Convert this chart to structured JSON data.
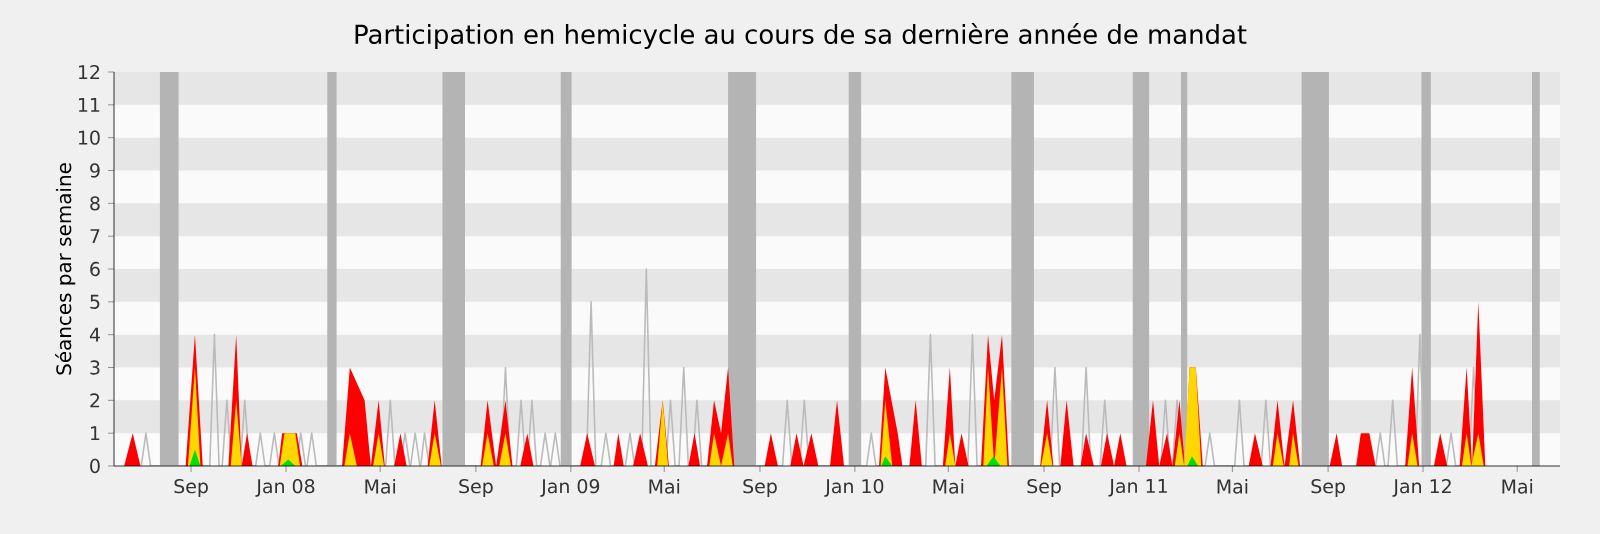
{
  "chart_data": {
    "type": "area",
    "title": "Participation en hemicycle au cours de sa dernière année de mandat",
    "ylabel": "Séances par semaine",
    "xlim": [
      "2007-05-25",
      "2012-06-25"
    ],
    "ylim": [
      0,
      12
    ],
    "xticks": [
      {
        "value": "2007-09-01",
        "label": "Sep"
      },
      {
        "value": "2008-01-01",
        "label": "Jan 08"
      },
      {
        "value": "2008-05-01",
        "label": "Mai"
      },
      {
        "value": "2008-09-01",
        "label": "Sep"
      },
      {
        "value": "2009-01-01",
        "label": "Jan 09"
      },
      {
        "value": "2009-05-01",
        "label": "Mai"
      },
      {
        "value": "2009-09-01",
        "label": "Sep"
      },
      {
        "value": "2010-01-01",
        "label": "Jan 10"
      },
      {
        "value": "2010-05-01",
        "label": "Mai"
      },
      {
        "value": "2010-09-01",
        "label": "Sep"
      },
      {
        "value": "2011-01-01",
        "label": "Jan 11"
      },
      {
        "value": "2011-05-01",
        "label": "Mai"
      },
      {
        "value": "2011-09-01",
        "label": "Sep"
      },
      {
        "value": "2012-01-01",
        "label": "Jan 12"
      },
      {
        "value": "2012-05-01",
        "label": "Mai"
      }
    ],
    "yticks": [
      0,
      1,
      2,
      3,
      4,
      5,
      6,
      7,
      8,
      9,
      10,
      11,
      12
    ],
    "bands": [
      {
        "axis": "y",
        "from": 1,
        "to": 2,
        "color": "#e6e6e6"
      },
      {
        "axis": "y",
        "from": 3,
        "to": 4,
        "color": "#e6e6e6"
      },
      {
        "axis": "y",
        "from": 5,
        "to": 6,
        "color": "#e6e6e6"
      },
      {
        "axis": "y",
        "from": 7,
        "to": 8,
        "color": "#e6e6e6"
      },
      {
        "axis": "y",
        "from": 9,
        "to": 10,
        "color": "#e6e6e6"
      },
      {
        "axis": "y",
        "from": 11,
        "to": 12,
        "color": "#e6e6e6"
      },
      {
        "axis": "x",
        "from": "2007-07-23",
        "to": "2007-08-16",
        "color": "#b4b4b4"
      },
      {
        "axis": "x",
        "from": "2008-02-23",
        "to": "2008-03-06",
        "color": "#b4b4b4"
      },
      {
        "axis": "x",
        "from": "2008-07-20",
        "to": "2008-08-18",
        "color": "#b4b4b4"
      },
      {
        "axis": "x",
        "from": "2008-12-19",
        "to": "2009-01-02",
        "color": "#b4b4b4"
      },
      {
        "axis": "x",
        "from": "2009-07-22",
        "to": "2009-08-27",
        "color": "#b4b4b4"
      },
      {
        "axis": "x",
        "from": "2009-12-24",
        "to": "2010-01-09",
        "color": "#b4b4b4"
      },
      {
        "axis": "x",
        "from": "2010-07-21",
        "to": "2010-08-19",
        "color": "#b4b4b4"
      },
      {
        "axis": "x",
        "from": "2010-12-24",
        "to": "2011-01-14",
        "color": "#b4b4b4"
      },
      {
        "axis": "x",
        "from": "2011-02-24",
        "to": "2011-03-04",
        "color": "#b4b4b4"
      },
      {
        "axis": "x",
        "from": "2011-07-29",
        "to": "2011-09-02",
        "color": "#b4b4b4"
      },
      {
        "axis": "x",
        "from": "2011-12-30",
        "to": "2012-01-11",
        "color": "#b4b4b4"
      },
      {
        "axis": "x",
        "from": "2012-05-20",
        "to": "2012-05-30",
        "color": "#b4b4b4"
      }
    ],
    "series": [
      {
        "type": "line",
        "color": "#bbbbbb",
        "x": [
          "2007-06-29",
          "2007-07-05",
          "2007-07-11",
          "2007-09-25",
          "2007-10-01",
          "2007-10-07",
          "2007-10-11",
          "2007-10-17",
          "2007-10-23",
          "2007-11-03",
          "2007-11-09",
          "2007-11-15",
          "2007-11-23",
          "2007-11-29",
          "2007-12-05",
          "2007-12-11",
          "2007-12-17",
          "2007-12-23",
          "2008-01-14",
          "2008-01-20",
          "2008-01-26",
          "2008-01-28",
          "2008-02-03",
          "2008-02-09",
          "2008-05-08",
          "2008-05-14",
          "2008-05-20",
          "2008-05-27",
          "2008-06-02",
          "2008-06-08",
          "2008-06-09",
          "2008-06-15",
          "2008-06-21",
          "2008-06-22",
          "2008-06-27",
          "2008-07-03",
          "2008-10-03",
          "2008-10-09",
          "2008-10-15",
          "2008-10-23",
          "2008-10-29",
          "2008-11-04",
          "2008-11-06",
          "2008-11-12",
          "2008-11-18",
          "2008-11-23",
          "2008-11-29",
          "2008-12-05",
          "2008-12-06",
          "2008-12-12",
          "2008-12-18",
          "2009-01-21",
          "2009-01-27",
          "2009-02-02",
          "2009-02-09",
          "2009-02-15",
          "2009-02-21",
          "2009-03-12",
          "2009-03-18",
          "2009-03-24",
          "2009-04-02",
          "2009-04-08",
          "2009-04-14",
          "2009-05-03",
          "2009-05-09",
          "2009-05-15",
          "2009-05-20",
          "2009-05-26",
          "2009-06-01",
          "2009-06-06",
          "2009-06-12",
          "2009-06-18",
          "2009-09-30",
          "2009-10-06",
          "2009-10-12",
          "2009-10-22",
          "2009-10-28",
          "2009-11-03",
          "2010-01-16",
          "2010-01-22",
          "2010-01-28",
          "2010-04-02",
          "2010-04-08",
          "2010-04-14",
          "2010-05-26",
          "2010-06-01",
          "2010-06-07",
          "2010-09-09",
          "2010-09-15",
          "2010-09-21",
          "2010-10-19",
          "2010-10-25",
          "2010-10-31",
          "2010-11-12",
          "2010-11-18",
          "2010-11-24",
          "2011-01-29",
          "2011-02-04",
          "2011-02-10",
          "2011-02-13",
          "2011-02-19",
          "2011-02-25",
          "2011-03-27",
          "2011-04-02",
          "2011-04-08",
          "2011-05-04",
          "2011-05-10",
          "2011-05-16",
          "2011-06-07",
          "2011-06-13",
          "2011-06-19",
          "2011-11-01",
          "2011-11-07",
          "2011-11-13",
          "2011-11-17",
          "2011-11-23",
          "2011-11-29",
          "2011-12-22",
          "2011-12-28",
          "2012-01-03",
          "2012-01-31",
          "2012-02-06",
          "2012-02-12",
          "2012-02-29",
          "2012-03-06",
          "2012-03-12"
        ],
        "values": [
          0,
          1,
          0,
          0,
          4,
          0,
          0,
          2,
          0,
          0,
          2,
          0,
          0,
          1,
          0,
          0,
          1,
          0,
          0,
          1,
          0,
          0,
          1,
          0,
          0,
          2,
          0,
          0,
          1,
          0,
          0,
          1,
          0,
          0,
          1,
          0,
          0,
          3,
          0,
          0,
          2,
          0,
          0,
          2,
          0,
          0,
          1,
          0,
          0,
          1,
          0,
          0,
          5,
          0,
          0,
          1,
          0,
          0,
          1,
          0,
          0,
          6,
          0,
          0,
          2,
          0,
          0,
          3,
          0,
          0,
          2,
          0,
          0,
          2,
          0,
          0,
          2,
          0,
          0,
          1,
          0,
          0,
          4,
          0,
          0,
          4,
          0,
          0,
          3,
          0,
          0,
          3,
          0,
          0,
          2,
          0,
          0,
          2,
          0,
          0,
          2,
          0,
          0,
          1,
          0,
          0,
          2,
          0,
          0,
          2,
          0,
          0,
          1,
          0,
          0,
          2,
          0,
          0,
          4,
          0,
          0,
          1,
          0,
          0,
          3,
          0
        ]
      },
      {
        "color": "#ff0000",
        "x": [
          "2007-06-07",
          "2007-06-18",
          "2007-06-28",
          "2007-08-25",
          "2007-09-06",
          "2007-09-16",
          "2007-10-19",
          "2007-10-29",
          "2007-11-05",
          "2007-11-12",
          "2007-11-19",
          "2007-12-22",
          "2007-12-27",
          "2008-01-15",
          "2008-01-22",
          "2008-03-13",
          "2008-03-23",
          "2008-04-11",
          "2008-04-19",
          "2008-04-29",
          "2008-05-07",
          "2008-05-19",
          "2008-05-27",
          "2008-06-04",
          "2008-07-01",
          "2008-07-10",
          "2008-07-19",
          "2008-09-07",
          "2008-09-16",
          "2008-09-27",
          "2008-10-09",
          "2008-10-18",
          "2008-10-28",
          "2008-11-06",
          "2008-11-14",
          "2009-01-13",
          "2009-01-22",
          "2009-02-01",
          "2009-02-25",
          "2009-03-03",
          "2009-03-10",
          "2009-03-22",
          "2009-03-31",
          "2009-04-10",
          "2009-04-19",
          "2009-04-29",
          "2009-05-07",
          "2009-06-01",
          "2009-06-09",
          "2009-06-16",
          "2009-06-25",
          "2009-07-04",
          "2009-07-13",
          "2009-07-22",
          "2009-07-30",
          "2009-09-07",
          "2009-09-15",
          "2009-09-24",
          "2009-10-10",
          "2009-10-18",
          "2009-10-27",
          "2009-11-06",
          "2009-11-15",
          "2009-11-30",
          "2009-12-09",
          "2009-12-18",
          "2010-02-01",
          "2010-02-09",
          "2010-02-25",
          "2010-03-03",
          "2010-03-12",
          "2010-03-20",
          "2010-03-28",
          "2010-04-24",
          "2010-05-03",
          "2010-05-10",
          "2010-05-18",
          "2010-05-27",
          "2010-06-12",
          "2010-06-21",
          "2010-06-29",
          "2010-07-09",
          "2010-07-18",
          "2010-08-27",
          "2010-09-05",
          "2010-09-13",
          "2010-09-22",
          "2010-09-30",
          "2010-10-09",
          "2010-10-18",
          "2010-10-25",
          "2010-11-04",
          "2010-11-13",
          "2010-11-21",
          "2010-11-30",
          "2010-12-08",
          "2010-12-16",
          "2011-01-10",
          "2011-01-19",
          "2011-01-27",
          "2011-02-06",
          "2011-02-13",
          "2011-02-22",
          "2011-03-01",
          "2011-03-07",
          "2011-03-15",
          "2011-03-24",
          "2011-05-22",
          "2011-05-30",
          "2011-06-09",
          "2011-06-19",
          "2011-06-28",
          "2011-07-07",
          "2011-07-18",
          "2011-07-27",
          "2011-09-03",
          "2011-09-12",
          "2011-09-19",
          "2011-10-07",
          "2011-10-13",
          "2011-10-24",
          "2011-11-01",
          "2011-12-09",
          "2011-12-18",
          "2011-12-27",
          "2012-01-15",
          "2012-01-23",
          "2012-02-01",
          "2012-02-17",
          "2012-02-26",
          "2012-03-04",
          "2012-03-12",
          "2012-03-21"
        ],
        "values": [
          0,
          1,
          0,
          0,
          4,
          0,
          0,
          4,
          0,
          1,
          0,
          0,
          1,
          1,
          0,
          0,
          3,
          2,
          0,
          2,
          0,
          0,
          1,
          0,
          0,
          2,
          0,
          0,
          2,
          0,
          2,
          0,
          0,
          1,
          0,
          0,
          1,
          0,
          0,
          1,
          0,
          0,
          1,
          0,
          0,
          2,
          0,
          0,
          1,
          0,
          0,
          2,
          1,
          3,
          0,
          0,
          1,
          0,
          0,
          1,
          0,
          1,
          0,
          0,
          2,
          0,
          0,
          3,
          1,
          0,
          0,
          2,
          0,
          0,
          3,
          0,
          1,
          0,
          0,
          4,
          2,
          4,
          0,
          0,
          2,
          0,
          0,
          2,
          0,
          0,
          1,
          0,
          0,
          1,
          0,
          1,
          0,
          0,
          2,
          0,
          1,
          0,
          2,
          0,
          3,
          3,
          0,
          0,
          1,
          0,
          0,
          2,
          0,
          2,
          0,
          0,
          1,
          0,
          0,
          1,
          1,
          0,
          0,
          3,
          0,
          0,
          1,
          0,
          0,
          3,
          0,
          5,
          0
        ]
      },
      {
        "color": "#ffd700",
        "x": [
          "2007-08-28",
          "2007-09-06",
          "2007-09-13",
          "2007-10-22",
          "2007-10-29",
          "2007-11-05",
          "2007-12-24",
          "2007-12-30",
          "2008-01-13",
          "2008-01-19",
          "2008-03-16",
          "2008-03-23",
          "2008-04-01",
          "2008-04-22",
          "2008-04-29",
          "2008-05-06",
          "2008-07-03",
          "2008-07-10",
          "2008-07-18",
          "2008-09-09",
          "2008-09-16",
          "2008-09-24",
          "2008-10-01",
          "2008-10-09",
          "2008-10-16",
          "2009-04-22",
          "2009-04-29",
          "2009-05-06",
          "2009-06-28",
          "2009-07-04",
          "2009-07-13",
          "2009-07-22",
          "2009-07-28",
          "2010-02-03",
          "2010-02-09",
          "2010-02-18",
          "2010-04-27",
          "2010-05-03",
          "2010-05-10",
          "2010-06-15",
          "2010-06-21",
          "2010-06-29",
          "2010-07-09",
          "2010-07-16",
          "2010-08-28",
          "2010-09-05",
          "2010-09-12",
          "2011-02-16",
          "2011-02-22",
          "2011-02-28",
          "2011-03-07",
          "2011-03-15",
          "2011-03-22",
          "2011-06-22",
          "2011-06-28",
          "2011-07-06",
          "2011-07-13",
          "2011-07-18",
          "2011-07-25",
          "2011-12-12",
          "2011-12-18",
          "2011-12-25",
          "2012-02-20",
          "2012-02-26",
          "2012-03-03",
          "2012-03-12",
          "2012-03-19"
        ],
        "values": [
          0,
          3,
          0,
          0,
          2,
          0,
          0,
          1,
          1,
          0,
          0,
          1,
          0,
          0,
          1,
          0,
          0,
          1,
          0,
          0,
          1,
          0,
          0,
          1,
          0,
          0,
          2,
          0,
          0,
          1,
          0,
          1,
          0,
          0,
          2,
          0,
          0,
          1,
          0,
          0,
          3,
          0,
          3,
          0,
          0,
          1,
          0,
          0,
          1,
          0,
          3,
          3,
          0,
          0,
          1,
          0,
          0,
          1,
          0,
          0,
          1,
          0,
          0,
          1,
          0,
          1,
          0
        ]
      },
      {
        "color": "#00dd00",
        "x": [
          "2007-08-30",
          "2007-09-06",
          "2007-09-13",
          "2007-12-25",
          "2008-01-04",
          "2008-01-13",
          "2010-02-04",
          "2010-02-09",
          "2010-02-18",
          "2010-06-19",
          "2010-06-28",
          "2010-07-07",
          "2011-03-04",
          "2011-03-10",
          "2011-03-18"
        ],
        "values": [
          0,
          0.5,
          0,
          0,
          0.2,
          0,
          0,
          0.3,
          0,
          0,
          0.3,
          0,
          0,
          0.3,
          0
        ]
      }
    ]
  }
}
